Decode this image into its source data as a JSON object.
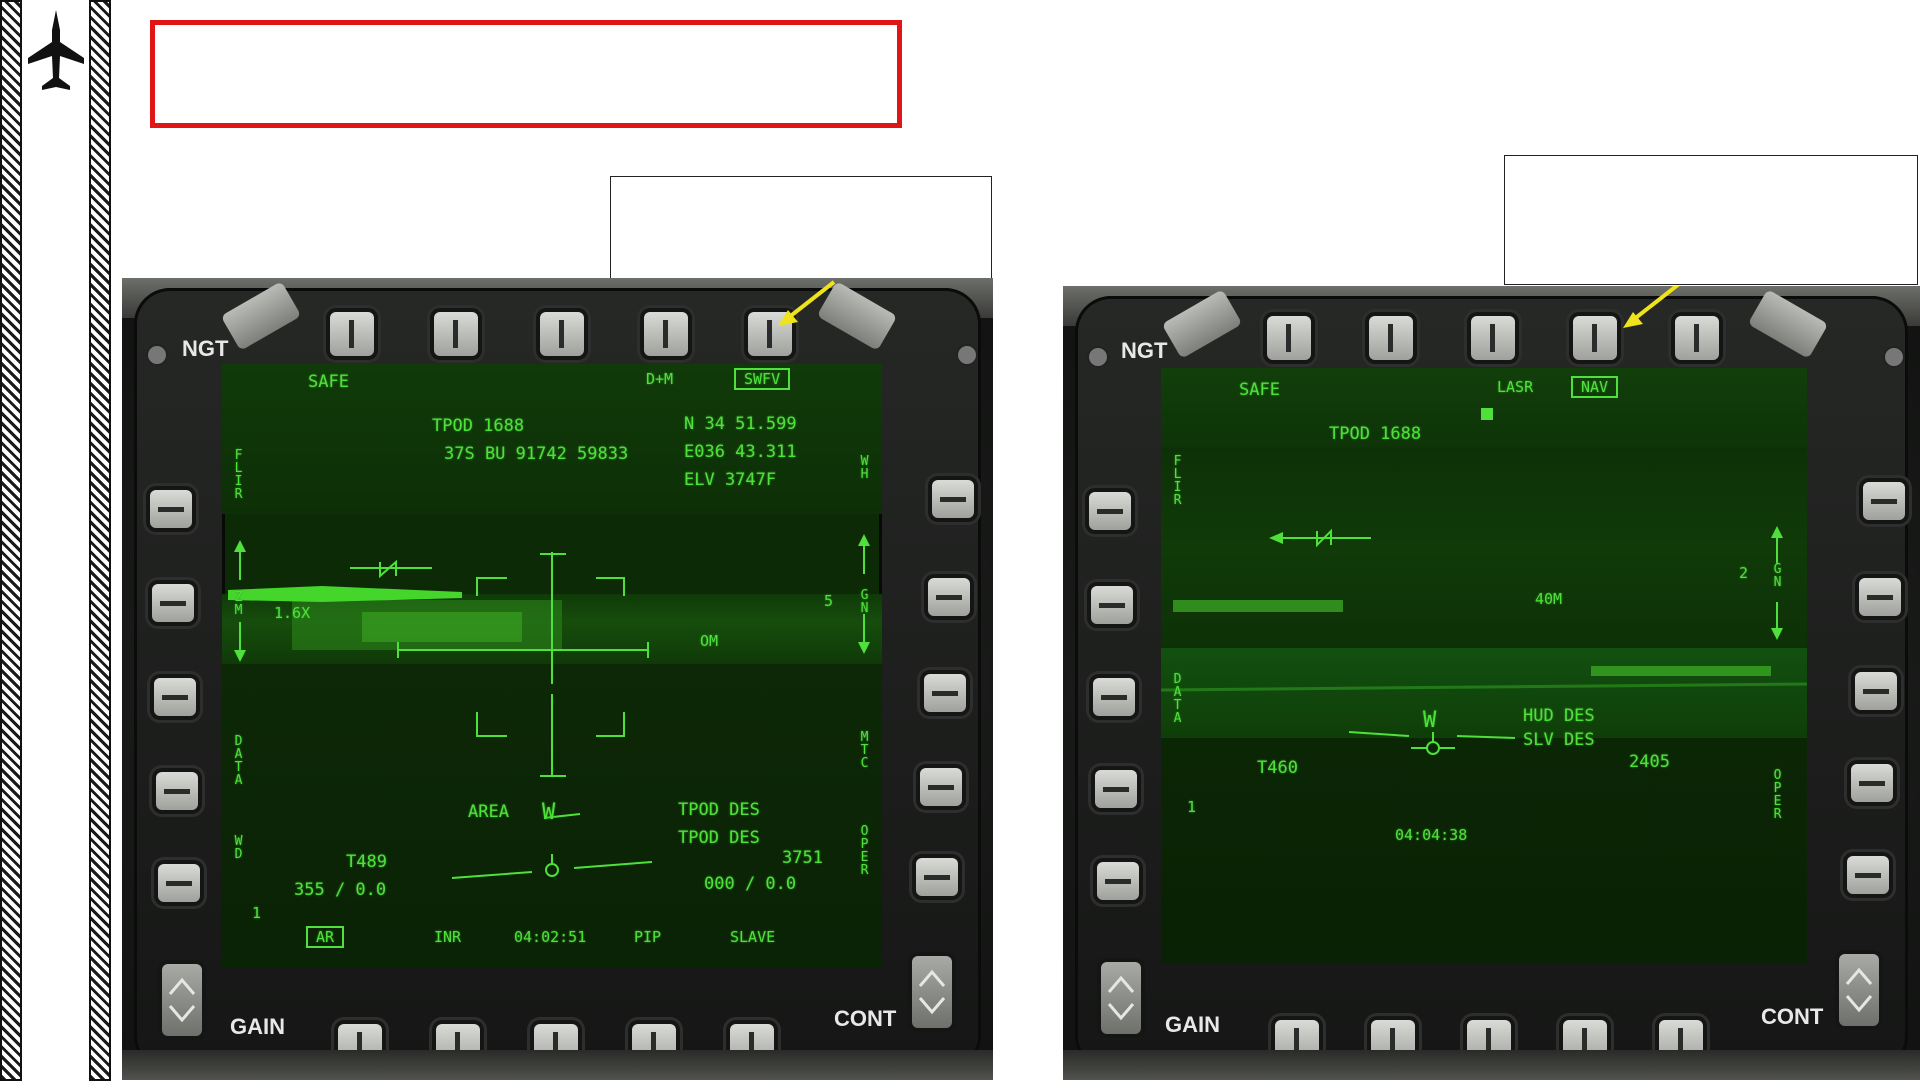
{
  "colors": {
    "callout_red": "#e01616",
    "symbology_green": "#4fe03c",
    "pointer_yellow": "#f0e21b"
  },
  "sidebar": {
    "icon": "fighter-jet-icon"
  },
  "left_mfd": {
    "bezel": {
      "ngt": "NGT",
      "gain": "GAIN",
      "cont": "CONT"
    },
    "top_left": {
      "safe": "SAFE"
    },
    "top_right": {
      "dm": "D+M",
      "mode": "SWFV"
    },
    "track": {
      "tpod": "TPOD 1688",
      "grid": "37S BU 91742 59833"
    },
    "coords": {
      "lat": "N 34 51.599",
      "lon": "E036 43.311",
      "elv": "ELV   3747F"
    },
    "left_labels": {
      "flir": "FLIR",
      "zm": "ZM",
      "data": "DATA",
      "wd": "WD",
      "fov": "1.6X",
      "one": "1"
    },
    "right_labels": {
      "wh": "WH",
      "gn": "GN",
      "mtc": "MTC",
      "oper": "OPER",
      "five": "5",
      "om": "OM"
    },
    "center": {
      "area": "AREA"
    },
    "designation": {
      "line1": "TPOD DES",
      "line2": "TPOD DES",
      "range": "3751",
      "brg": "000 / 0.0"
    },
    "lower_left": {
      "tnum": "T489",
      "hdg": "355 / 0.0"
    },
    "bottom_row": {
      "ar": "AR",
      "inr": "INR",
      "time": "04:02:51",
      "pip": "PIP",
      "slave": "SLAVE"
    }
  },
  "right_mfd": {
    "bezel": {
      "ngt": "NGT",
      "gain": "GAIN",
      "cont": "CONT"
    },
    "top_left": {
      "safe": "SAFE"
    },
    "top_right": {
      "lasr": "LASR",
      "mode": "NAV"
    },
    "track": {
      "tpod": "TPOD 1688"
    },
    "left_labels": {
      "flir": "FLIR",
      "data": "DATA",
      "one": "1"
    },
    "right_labels": {
      "gn": "GN",
      "oper": "OPER",
      "two": "2",
      "range_m": "40M"
    },
    "designation": {
      "line1": "HUD DES",
      "line2": "SLV DES",
      "range": "2405"
    },
    "lower_left": {
      "tnum": "T460"
    },
    "bottom_row": {
      "time": "04:04:38"
    }
  }
}
